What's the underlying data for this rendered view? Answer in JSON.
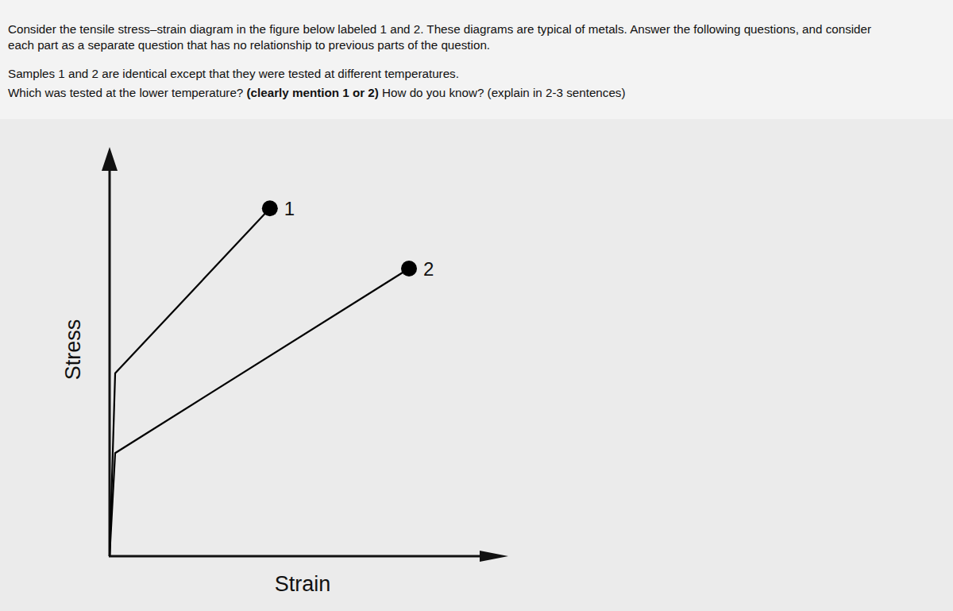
{
  "question": {
    "intro": [
      "Consider the tensile stress–strain diagram in the figure below labeled 1 and 2. These diagrams are typical of metals. Answer the following questions, and consider",
      "each part as a separate question that has no relationship to previous parts of the question."
    ],
    "context": "Samples 1 and 2 are identical except that they were tested at different temperatures.",
    "prompt": [
      {
        "text": "Which was tested at the lower temperature? ",
        "bold": false
      },
      {
        "text": "(clearly mention 1 or 2)",
        "bold": true
      },
      {
        "text": " How do you know? (explain in 2-3 sentences)",
        "bold": false
      }
    ]
  },
  "chart_data": {
    "type": "line",
    "x_label": "Strain",
    "y_label": "Stress",
    "xlim": [
      0,
      100
    ],
    "ylim": [
      0,
      100
    ],
    "xticks": [],
    "yticks": [],
    "tick_labels": false,
    "grid": false,
    "series": [
      {
        "name": "1",
        "color": "#000000",
        "marker": "circle",
        "x": [
          0,
          1.4,
          40.2
        ],
        "values": [
          0,
          44.7,
          85.0
        ]
      },
      {
        "name": "2",
        "color": "#000000",
        "marker": "circle",
        "x": [
          0,
          1.4,
          75.1
        ],
        "values": [
          0,
          25.2,
          70.3
        ]
      }
    ]
  }
}
